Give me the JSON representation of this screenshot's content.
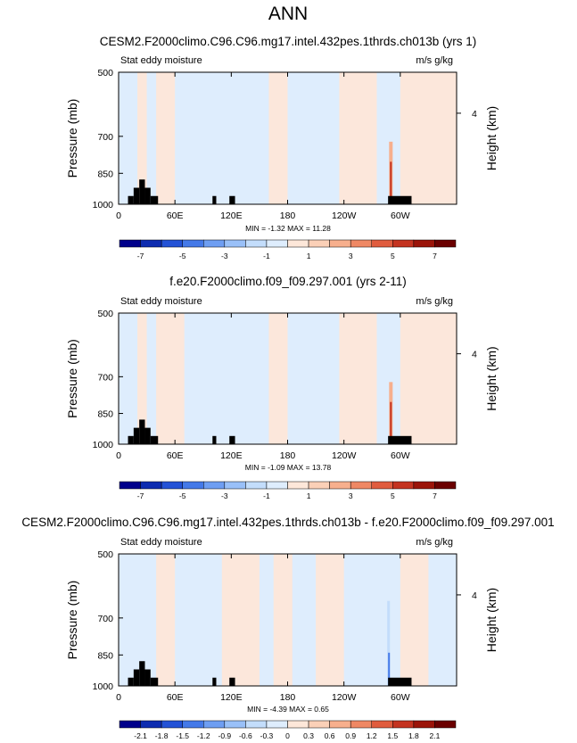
{
  "page_title": "ANN",
  "colors": {
    "contour_scale": [
      "#00008b",
      "#0d2cb0",
      "#2352d6",
      "#4479e8",
      "#6e9ef2",
      "#99c0f8",
      "#c3ddfb",
      "#deedfd",
      "#fde7d9",
      "#fbd0b7",
      "#f7af8d",
      "#ef8864",
      "#e05c3e",
      "#c43320",
      "#9b1409",
      "#6b0000"
    ],
    "land_mask": "#000000"
  },
  "chart_data": [
    {
      "type": "heatmap",
      "title": "CESM2.F2000climo.C96.C96.mg17.intel.432pes.1thrds.ch013b (yrs 1)",
      "left_label": "Stat eddy moisture",
      "right_label": "m/s g/kg",
      "xlabel": "",
      "ylabel": "Pressure (mb)",
      "ylabel_right": "Height (km)",
      "x_ticks": [
        "0",
        "60E",
        "120E",
        "180",
        "120W",
        "60W"
      ],
      "x_tick_values": [
        0,
        60,
        120,
        180,
        240,
        300
      ],
      "xlim": [
        0,
        360
      ],
      "y_ticks": [
        "500",
        "700",
        "850",
        "1000"
      ],
      "y_tick_values": [
        500,
        700,
        850,
        1000
      ],
      "ylim": [
        1000,
        500
      ],
      "right_ticks": [
        "4"
      ],
      "right_tick_values": [
        620
      ],
      "stats": "MIN = -1.32  MAX = 11.28",
      "colorbar_labels": [
        "-7",
        "-5",
        "-3",
        "-1",
        "1",
        "3",
        "5",
        "7"
      ],
      "colorbar_levels": [
        -7,
        -6,
        -5,
        -4,
        -3,
        -2,
        -1,
        0,
        1,
        2,
        3,
        4,
        5,
        6,
        7
      ],
      "field_summary": "Mostly near-zero values (-1 to 1) with a sharp positive maximum over the Andes near 70W close to the surface",
      "max_location": {
        "lon": 290,
        "pressure": 960,
        "value": 11.28
      },
      "positive_bands_lon": [
        [
          20,
          30
        ],
        [
          40,
          60
        ],
        [
          160,
          180
        ],
        [
          235,
          275
        ],
        [
          300,
          360
        ]
      ],
      "land_columns": [
        [
          10,
          16,
          1
        ],
        [
          16,
          22,
          2
        ],
        [
          22,
          28,
          3
        ],
        [
          28,
          34,
          2
        ],
        [
          34,
          42,
          1
        ],
        [
          100,
          104,
          1
        ],
        [
          118,
          124,
          1
        ],
        [
          287,
          312,
          1
        ]
      ]
    },
    {
      "type": "heatmap",
      "title": "f.e20.F2000climo.f09_f09.297.001 (yrs 2-11)",
      "left_label": "Stat eddy moisture",
      "right_label": "m/s g/kg",
      "xlabel": "",
      "ylabel": "Pressure (mb)",
      "ylabel_right": "Height (km)",
      "x_ticks": [
        "0",
        "60E",
        "120E",
        "180",
        "120W",
        "60W"
      ],
      "x_tick_values": [
        0,
        60,
        120,
        180,
        240,
        300
      ],
      "xlim": [
        0,
        360
      ],
      "y_ticks": [
        "500",
        "700",
        "850",
        "1000"
      ],
      "y_tick_values": [
        500,
        700,
        850,
        1000
      ],
      "ylim": [
        1000,
        500
      ],
      "right_ticks": [
        "4"
      ],
      "right_tick_values": [
        620
      ],
      "stats": "MIN = -1.09  MAX = 13.78",
      "colorbar_labels": [
        "-7",
        "-5",
        "-3",
        "-1",
        "1",
        "3",
        "5",
        "7"
      ],
      "colorbar_levels": [
        -7,
        -6,
        -5,
        -4,
        -3,
        -2,
        -1,
        0,
        1,
        2,
        3,
        4,
        5,
        6,
        7
      ],
      "field_summary": "Mostly near-zero values (-1 to 1) with a sharp positive maximum over the Andes near 70W close to the surface",
      "max_location": {
        "lon": 290,
        "pressure": 960,
        "value": 13.78
      },
      "positive_bands_lon": [
        [
          20,
          30
        ],
        [
          40,
          70
        ],
        [
          160,
          180
        ],
        [
          235,
          275
        ],
        [
          300,
          360
        ]
      ],
      "land_columns": [
        [
          10,
          16,
          1
        ],
        [
          16,
          22,
          2
        ],
        [
          22,
          28,
          3
        ],
        [
          28,
          34,
          2
        ],
        [
          34,
          42,
          1
        ],
        [
          100,
          104,
          1
        ],
        [
          118,
          124,
          1
        ],
        [
          287,
          312,
          1
        ]
      ]
    },
    {
      "type": "heatmap",
      "title": "CESM2.F2000climo.C96.C96.mg17.intel.432pes.1thrds.ch013b - f.e20.F2000climo.f09_f09.297.001",
      "left_label": "Stat eddy moisture",
      "right_label": "m/s g/kg",
      "xlabel": "",
      "ylabel": "Pressure (mb)",
      "ylabel_right": "Height (km)",
      "x_ticks": [
        "0",
        "60E",
        "120E",
        "180",
        "120W",
        "60W"
      ],
      "x_tick_values": [
        0,
        60,
        120,
        180,
        240,
        300
      ],
      "xlim": [
        0,
        360
      ],
      "y_ticks": [
        "500",
        "700",
        "850",
        "1000"
      ],
      "y_tick_values": [
        500,
        700,
        850,
        1000
      ],
      "ylim": [
        1000,
        500
      ],
      "right_ticks": [
        "4"
      ],
      "right_tick_values": [
        620
      ],
      "stats": "MIN = -4.39  MAX =  0.65",
      "colorbar_labels": [
        "-2.1",
        "-1.8",
        "-1.5",
        "-1.2",
        "-0.9",
        "-0.6",
        "-0.3",
        "0",
        "0.3",
        "0.6",
        "0.9",
        "1.2",
        "1.5",
        "1.8",
        "2.1"
      ],
      "colorbar_levels": [
        -2.1,
        -1.8,
        -1.5,
        -1.2,
        -0.9,
        -0.6,
        -0.3,
        0,
        0.3,
        0.6,
        0.9,
        1.2,
        1.5,
        1.8,
        2.1
      ],
      "field_summary": "Differences mostly between -0.3 and 0.3, with a negative minimum over the Andes near 70W",
      "min_location": {
        "lon": 288,
        "pressure": 900,
        "value": -4.39
      },
      "positive_bands_lon": [
        [
          40,
          60
        ],
        [
          110,
          150
        ],
        [
          165,
          185
        ],
        [
          210,
          240
        ],
        [
          300,
          330
        ]
      ],
      "land_columns": [
        [
          10,
          16,
          1
        ],
        [
          16,
          22,
          2
        ],
        [
          22,
          28,
          3
        ],
        [
          28,
          34,
          2
        ],
        [
          34,
          42,
          1
        ],
        [
          100,
          104,
          1
        ],
        [
          118,
          124,
          1
        ],
        [
          287,
          312,
          1
        ]
      ]
    }
  ]
}
